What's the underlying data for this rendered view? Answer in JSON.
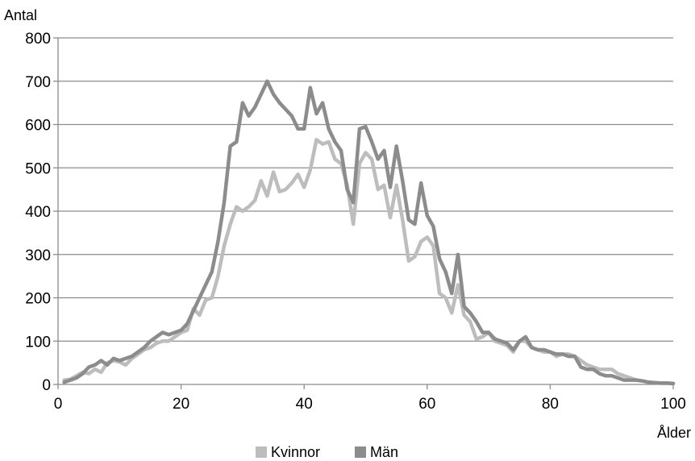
{
  "chart_data": {
    "type": "line",
    "ylabel": "Antal",
    "xlabel": "Ålder",
    "xlim": [
      0,
      100
    ],
    "ylim": [
      0,
      800
    ],
    "x_ticks": [
      0,
      20,
      40,
      60,
      80,
      100
    ],
    "y_ticks": [
      0,
      100,
      200,
      300,
      400,
      500,
      600,
      700,
      800
    ],
    "grid": "horizontal",
    "legend_position": "bottom",
    "colors": {
      "Kvinnor": "#bdbdbd",
      "Män": "#8c8c8c",
      "grid": "#8c8c8c",
      "axis": "#8c8c8c"
    },
    "series": [
      {
        "name": "Kvinnor",
        "x": [
          1,
          2,
          3,
          4,
          5,
          6,
          7,
          8,
          9,
          10,
          11,
          12,
          13,
          14,
          15,
          16,
          17,
          18,
          19,
          20,
          21,
          22,
          23,
          24,
          25,
          26,
          27,
          28,
          29,
          30,
          31,
          32,
          33,
          34,
          35,
          36,
          37,
          38,
          39,
          40,
          41,
          42,
          43,
          44,
          45,
          46,
          47,
          48,
          49,
          50,
          51,
          52,
          53,
          54,
          55,
          56,
          57,
          58,
          59,
          60,
          61,
          62,
          63,
          64,
          65,
          66,
          67,
          68,
          69,
          70,
          71,
          72,
          73,
          74,
          75,
          76,
          77,
          78,
          79,
          80,
          81,
          82,
          83,
          84,
          85,
          86,
          87,
          88,
          89,
          90,
          91,
          92,
          93,
          94,
          95,
          96,
          97,
          98,
          99,
          100
        ],
        "values": [
          10,
          12,
          20,
          28,
          25,
          35,
          28,
          50,
          55,
          52,
          45,
          60,
          70,
          80,
          85,
          95,
          100,
          100,
          110,
          120,
          125,
          175,
          160,
          195,
          200,
          250,
          320,
          370,
          410,
          400,
          410,
          425,
          470,
          435,
          490,
          445,
          450,
          465,
          485,
          455,
          495,
          565,
          555,
          560,
          520,
          510,
          460,
          370,
          510,
          535,
          520,
          450,
          460,
          385,
          460,
          380,
          285,
          295,
          330,
          340,
          320,
          210,
          200,
          165,
          230,
          160,
          145,
          105,
          110,
          120,
          100,
          95,
          90,
          75,
          100,
          100,
          85,
          80,
          75,
          75,
          65,
          70,
          70,
          65,
          55,
          45,
          40,
          35,
          35,
          35,
          25,
          20,
          15,
          10,
          8,
          5,
          4,
          3,
          3,
          2
        ]
      },
      {
        "name": "Män",
        "x": [
          1,
          2,
          3,
          4,
          5,
          6,
          7,
          8,
          9,
          10,
          11,
          12,
          13,
          14,
          15,
          16,
          17,
          18,
          19,
          20,
          21,
          22,
          23,
          24,
          25,
          26,
          27,
          28,
          29,
          30,
          31,
          32,
          33,
          34,
          35,
          36,
          37,
          38,
          39,
          40,
          41,
          42,
          43,
          44,
          45,
          46,
          47,
          48,
          49,
          50,
          51,
          52,
          53,
          54,
          55,
          56,
          57,
          58,
          59,
          60,
          61,
          62,
          63,
          64,
          65,
          66,
          67,
          68,
          69,
          70,
          71,
          72,
          73,
          74,
          75,
          76,
          77,
          78,
          79,
          80,
          81,
          82,
          83,
          84,
          85,
          86,
          87,
          88,
          89,
          90,
          91,
          92,
          93,
          94,
          95,
          96,
          97,
          98,
          99,
          100
        ],
        "values": [
          5,
          10,
          15,
          25,
          40,
          45,
          55,
          45,
          60,
          55,
          60,
          65,
          75,
          85,
          100,
          110,
          120,
          115,
          120,
          125,
          140,
          170,
          200,
          230,
          260,
          330,
          420,
          550,
          560,
          650,
          620,
          640,
          670,
          700,
          670,
          650,
          635,
          620,
          590,
          590,
          685,
          625,
          650,
          590,
          560,
          540,
          450,
          420,
          590,
          595,
          560,
          520,
          540,
          455,
          550,
          470,
          380,
          370,
          465,
          390,
          365,
          290,
          260,
          210,
          300,
          180,
          165,
          145,
          120,
          120,
          105,
          100,
          95,
          80,
          100,
          110,
          85,
          80,
          80,
          75,
          70,
          70,
          65,
          65,
          40,
          35,
          35,
          25,
          20,
          20,
          15,
          10,
          10,
          10,
          8,
          5,
          4,
          3,
          3,
          2
        ]
      }
    ]
  }
}
